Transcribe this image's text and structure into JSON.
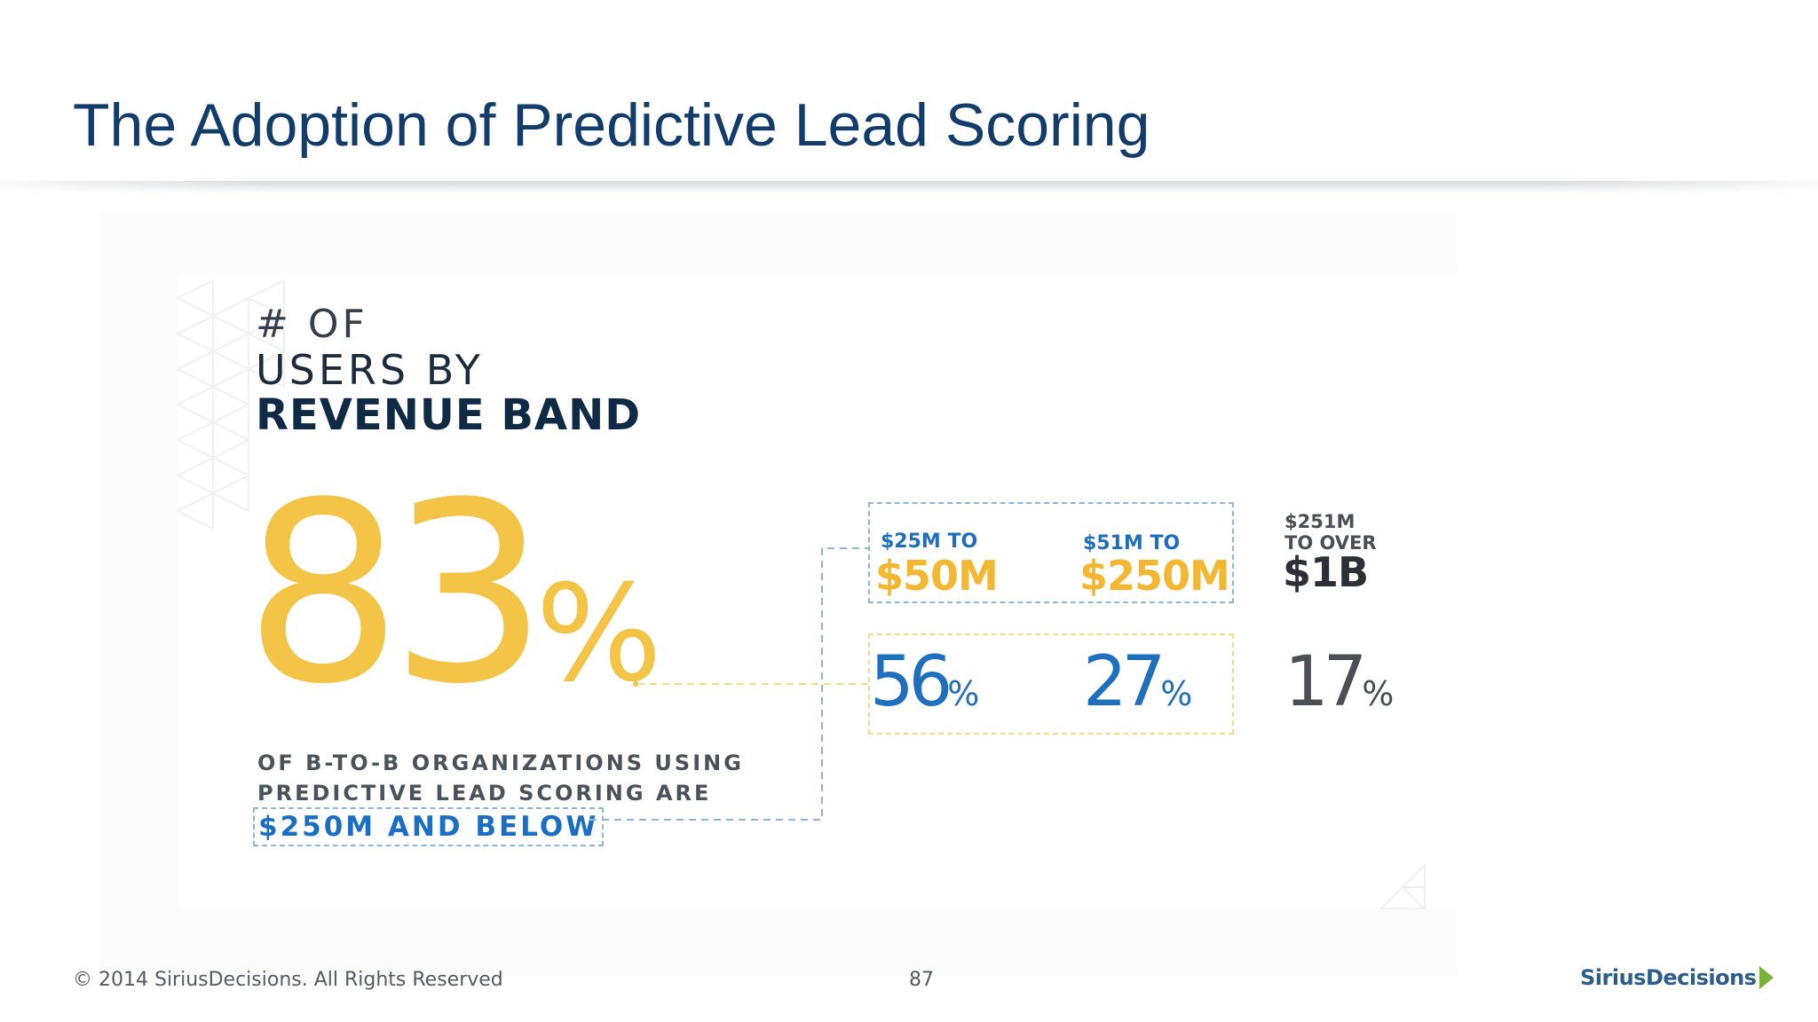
{
  "slide": {
    "title": "The Adoption of Predictive Lead Scoring"
  },
  "infographic": {
    "heading": {
      "line1": "# OF",
      "line2": "USERS BY",
      "line3": "REVENUE BAND"
    },
    "headline_value": "83",
    "headline_unit": "%",
    "description": {
      "line1": "OF B-TO-B ORGANIZATIONS USING",
      "line2": "PREDICTIVE LEAD SCORING ARE",
      "highlight": "$250M AND BELOW"
    },
    "bands": [
      {
        "small": "$25M TO",
        "big": "$50M",
        "value": "56",
        "unit": "%"
      },
      {
        "small": "$51M TO",
        "big": "$250M",
        "value": "27",
        "unit": "%"
      },
      {
        "small1": "$251M",
        "small2": "TO OVER",
        "big": "$1B",
        "value": "17",
        "unit": "%"
      }
    ],
    "colors": {
      "yellow": "#f4c447",
      "blue": "#1f6fbf",
      "navy": "#0f2a45",
      "gray": "#4a4f55"
    }
  },
  "footer": {
    "copyright": "© 2014 SiriusDecisions. All Rights Reserved",
    "page_number": "87",
    "logo_text": "SiriusDecisions"
  }
}
